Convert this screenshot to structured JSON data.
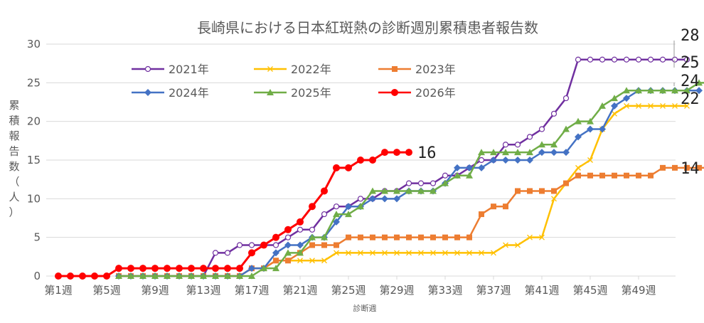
{
  "chart_data": {
    "type": "line",
    "title": "長崎県における日本紅斑熱の診断週別累積患者報告数",
    "xlabel": "診断週",
    "ylabel_chars": [
      "累",
      "積",
      "報",
      "告",
      "数",
      "（",
      "人",
      "）"
    ],
    "ylim": [
      0,
      30
    ],
    "yticks": [
      "0",
      "5",
      "10",
      "15",
      "20",
      "25",
      "30"
    ],
    "x_tick_labels": [
      "第1週",
      "第5週",
      "第9週",
      "第13週",
      "第17週",
      "第21週",
      "第25週",
      "第29週",
      "第33週",
      "第37週",
      "第41週",
      "第45週",
      "第49週"
    ],
    "grid": true,
    "legend_position": "top-left",
    "series": [
      {
        "name": "2021年",
        "color": "#7030A0",
        "marker": "circle-open",
        "start_week": 6,
        "values": [
          0,
          0,
          0,
          0,
          0,
          0,
          0,
          0,
          3,
          3,
          4,
          4,
          4,
          4,
          5,
          6,
          6,
          8,
          9,
          9,
          10,
          10,
          11,
          11,
          12,
          12,
          12,
          13,
          13,
          14,
          15,
          15,
          17,
          17,
          18,
          19,
          21,
          23,
          28,
          28,
          28,
          28,
          28,
          28,
          28,
          28,
          28,
          28
        ]
      },
      {
        "name": "2022年",
        "color": "#FFC000",
        "marker": "x",
        "start_week": 6,
        "values": [
          0,
          0,
          0,
          0,
          0,
          0,
          0,
          0,
          0,
          0,
          0,
          1,
          1,
          2,
          2,
          2,
          2,
          2,
          3,
          3,
          3,
          3,
          3,
          3,
          3,
          3,
          3,
          3,
          3,
          3,
          3,
          3,
          4,
          4,
          5,
          5,
          10,
          12,
          14,
          15,
          19,
          21,
          22,
          22,
          22,
          22,
          22,
          22
        ]
      },
      {
        "name": "2023年",
        "color": "#ED7D31",
        "marker": "square",
        "start_week": 6,
        "values": [
          0,
          0,
          0,
          0,
          0,
          0,
          0,
          0,
          0,
          0,
          0,
          1,
          1,
          2,
          2,
          3,
          4,
          4,
          4,
          5,
          5,
          5,
          5,
          5,
          5,
          5,
          5,
          5,
          5,
          5,
          8,
          9,
          9,
          11,
          11,
          11,
          11,
          12,
          13,
          13,
          13,
          13,
          13,
          13,
          13,
          14,
          14,
          14,
          14,
          14,
          14,
          14
        ]
      },
      {
        "name": "2024年",
        "color": "#4472C4",
        "marker": "diamond",
        "start_week": 6,
        "values": [
          0,
          0,
          0,
          0,
          0,
          0,
          0,
          0,
          0,
          0,
          0,
          1,
          1,
          3,
          4,
          4,
          5,
          5,
          7,
          9,
          9,
          10,
          10,
          10,
          11,
          11,
          11,
          12,
          14,
          14,
          14,
          15,
          15,
          15,
          15,
          16,
          16,
          16,
          18,
          19,
          19,
          22,
          23,
          24,
          24,
          24,
          24,
          24,
          24
        ]
      },
      {
        "name": "2025年",
        "color": "#70AD47",
        "marker": "triangle",
        "start_week": 6,
        "values": [
          0,
          0,
          0,
          0,
          0,
          0,
          0,
          0,
          0,
          0,
          0,
          0,
          1,
          1,
          3,
          3,
          5,
          5,
          8,
          8,
          9,
          11,
          11,
          11,
          11,
          11,
          11,
          12,
          13,
          13,
          16,
          16,
          16,
          16,
          16,
          17,
          17,
          19,
          20,
          20,
          22,
          23,
          24,
          24,
          24,
          24,
          24,
          24,
          25,
          25
        ]
      },
      {
        "name": "2026年",
        "color": "#FF0000",
        "marker": "circle",
        "start_week": 1,
        "values": [
          0,
          0,
          0,
          0,
          0,
          1,
          1,
          1,
          1,
          1,
          1,
          1,
          1,
          1,
          1,
          1,
          3,
          4,
          5,
          6,
          7,
          9,
          11,
          14,
          14,
          15,
          15,
          16,
          16,
          16
        ]
      }
    ],
    "end_labels": [
      "28",
      "25",
      "24",
      "22",
      "16",
      "14"
    ]
  },
  "colors": {
    "axis": "#d9d9d9",
    "grid": "#d9d9d9",
    "text": "#595959"
  }
}
